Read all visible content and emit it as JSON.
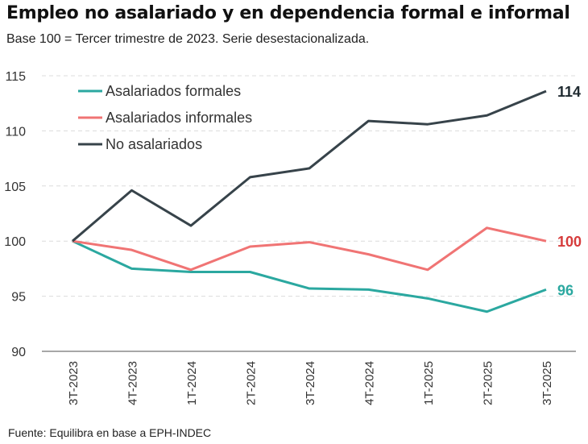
{
  "chart_data": {
    "type": "line",
    "title": "Empleo no asalariado y en dependencia formal e informal",
    "subtitle": "Base 100 = Tercer trimestre de 2023. Serie desestacionalizada.",
    "source": "Fuente: Equilibra en base a EPH-INDEC",
    "xlabel": "",
    "ylabel": "",
    "categories": [
      "3T-2023",
      "4T-2023",
      "1T-2024",
      "2T-2024",
      "3T-2024",
      "4T-2024",
      "1T-2025",
      "2T-2025",
      "3T-2025"
    ],
    "ylim": [
      90,
      115
    ],
    "yticks": [
      90,
      95,
      100,
      105,
      110,
      115
    ],
    "grid": true,
    "legend_position": "top-left",
    "series": [
      {
        "name": "Asalariados formales",
        "color": "#2ba8a0",
        "label_color": "#2ba8a0",
        "end_label": "96",
        "values": [
          100,
          97.5,
          97.2,
          97.2,
          95.7,
          95.6,
          94.8,
          93.6,
          95.6
        ]
      },
      {
        "name": "Asalariados informales",
        "color": "#f07474",
        "label_color": "#d63b3b",
        "end_label": "100",
        "values": [
          100,
          99.2,
          97.4,
          99.5,
          99.9,
          98.8,
          97.4,
          101.2,
          100.0
        ]
      },
      {
        "name": "No asalariados",
        "color": "#37434a",
        "label_color": "#1f2a30",
        "end_label": "114",
        "values": [
          100,
          104.6,
          101.4,
          105.8,
          106.6,
          110.9,
          110.6,
          111.4,
          113.6
        ]
      }
    ]
  }
}
